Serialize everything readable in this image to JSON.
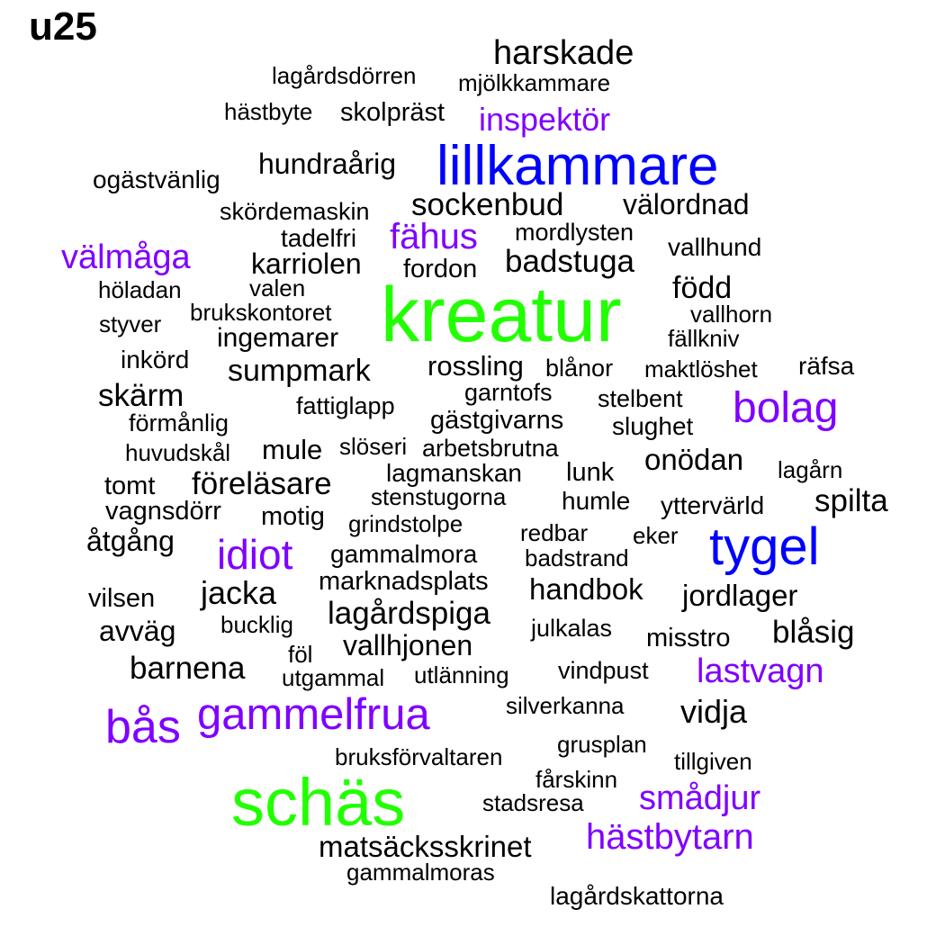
{
  "title": "u25",
  "colors": {
    "black": "#000000",
    "green": "#22ff00",
    "blue": "#0000ff",
    "purple": "#8000ff"
  },
  "words": [
    {
      "text": "harskade",
      "color": "black"
    },
    {
      "text": "lagårdsdörren",
      "color": "black"
    },
    {
      "text": "mjölkkammare",
      "color": "black"
    },
    {
      "text": "hästbyte",
      "color": "black"
    },
    {
      "text": "skolpräst",
      "color": "black"
    },
    {
      "text": "inspektör",
      "color": "purple"
    },
    {
      "text": "hundraårig",
      "color": "black"
    },
    {
      "text": "lillkammare",
      "color": "blue"
    },
    {
      "text": "ogästvänlig",
      "color": "black"
    },
    {
      "text": "sockenbud",
      "color": "black"
    },
    {
      "text": "välordnad",
      "color": "black"
    },
    {
      "text": "skördemaskin",
      "color": "black"
    },
    {
      "text": "tadelfri",
      "color": "black"
    },
    {
      "text": "fähus",
      "color": "purple"
    },
    {
      "text": "mordlysten",
      "color": "black"
    },
    {
      "text": "vallhund",
      "color": "black"
    },
    {
      "text": "välmåga",
      "color": "purple"
    },
    {
      "text": "karriolen",
      "color": "black"
    },
    {
      "text": "fordon",
      "color": "black"
    },
    {
      "text": "badstuga",
      "color": "black"
    },
    {
      "text": "född",
      "color": "black"
    },
    {
      "text": "höladan",
      "color": "black"
    },
    {
      "text": "valen",
      "color": "black"
    },
    {
      "text": "kreatur",
      "color": "green"
    },
    {
      "text": "vallhorn",
      "color": "black"
    },
    {
      "text": "styver",
      "color": "black"
    },
    {
      "text": "brukskontoret",
      "color": "black"
    },
    {
      "text": "ingemarer",
      "color": "black"
    },
    {
      "text": "fällkniv",
      "color": "black"
    },
    {
      "text": "inkörd",
      "color": "black"
    },
    {
      "text": "sumpmark",
      "color": "black"
    },
    {
      "text": "rossling",
      "color": "black"
    },
    {
      "text": "blånor",
      "color": "black"
    },
    {
      "text": "maktlöshet",
      "color": "black"
    },
    {
      "text": "räfsa",
      "color": "black"
    },
    {
      "text": "skärm",
      "color": "black"
    },
    {
      "text": "garntofs",
      "color": "black"
    },
    {
      "text": "stelbent",
      "color": "black"
    },
    {
      "text": "bolag",
      "color": "purple"
    },
    {
      "text": "fattiglapp",
      "color": "black"
    },
    {
      "text": "förmånlig",
      "color": "black"
    },
    {
      "text": "gästgivarns",
      "color": "black"
    },
    {
      "text": "slughet",
      "color": "black"
    },
    {
      "text": "huvudskål",
      "color": "black"
    },
    {
      "text": "mule",
      "color": "black"
    },
    {
      "text": "slöseri",
      "color": "black"
    },
    {
      "text": "arbetsbrutna",
      "color": "black"
    },
    {
      "text": "onödan",
      "color": "black"
    },
    {
      "text": "lagmanskan",
      "color": "black"
    },
    {
      "text": "lunk",
      "color": "black"
    },
    {
      "text": "lagårn",
      "color": "black"
    },
    {
      "text": "tomt",
      "color": "black"
    },
    {
      "text": "föreläsare",
      "color": "black"
    },
    {
      "text": "stenstugorna",
      "color": "black"
    },
    {
      "text": "humle",
      "color": "black"
    },
    {
      "text": "spilta",
      "color": "black"
    },
    {
      "text": "vagnsdörr",
      "color": "black"
    },
    {
      "text": "motig",
      "color": "black"
    },
    {
      "text": "yttervärld",
      "color": "black"
    },
    {
      "text": "grindstolpe",
      "color": "black"
    },
    {
      "text": "åtgång",
      "color": "black"
    },
    {
      "text": "redbar",
      "color": "black"
    },
    {
      "text": "eker",
      "color": "black"
    },
    {
      "text": "idiot",
      "color": "purple"
    },
    {
      "text": "gammalmora",
      "color": "black"
    },
    {
      "text": "tygel",
      "color": "blue"
    },
    {
      "text": "badstrand",
      "color": "black"
    },
    {
      "text": "marknadsplats",
      "color": "black"
    },
    {
      "text": "vilsen",
      "color": "black"
    },
    {
      "text": "jacka",
      "color": "black"
    },
    {
      "text": "handbok",
      "color": "black"
    },
    {
      "text": "jordlager",
      "color": "black"
    },
    {
      "text": "lagårdspiga",
      "color": "black"
    },
    {
      "text": "avväg",
      "color": "black"
    },
    {
      "text": "bucklig",
      "color": "black"
    },
    {
      "text": "julkalas",
      "color": "black"
    },
    {
      "text": "misstro",
      "color": "black"
    },
    {
      "text": "blåsig",
      "color": "black"
    },
    {
      "text": "föl",
      "color": "black"
    },
    {
      "text": "vallhjonen",
      "color": "black"
    },
    {
      "text": "barnena",
      "color": "black"
    },
    {
      "text": "vindpust",
      "color": "black"
    },
    {
      "text": "lastvagn",
      "color": "purple"
    },
    {
      "text": "utgammal",
      "color": "black"
    },
    {
      "text": "utlänning",
      "color": "black"
    },
    {
      "text": "silverkanna",
      "color": "black"
    },
    {
      "text": "vidja",
      "color": "black"
    },
    {
      "text": "bås",
      "color": "purple"
    },
    {
      "text": "gammelfrua",
      "color": "purple"
    },
    {
      "text": "grusplan",
      "color": "black"
    },
    {
      "text": "bruksförvaltaren",
      "color": "black"
    },
    {
      "text": "tillgiven",
      "color": "black"
    },
    {
      "text": "fårskinn",
      "color": "black"
    },
    {
      "text": "schäs",
      "color": "green"
    },
    {
      "text": "smådjur",
      "color": "purple"
    },
    {
      "text": "stadsresa",
      "color": "black"
    },
    {
      "text": "hästbytarn",
      "color": "purple"
    },
    {
      "text": "matsäcksskrinet",
      "color": "black"
    },
    {
      "text": "gammalmoras",
      "color": "black"
    },
    {
      "text": "lagårdskattorna",
      "color": "black"
    }
  ]
}
